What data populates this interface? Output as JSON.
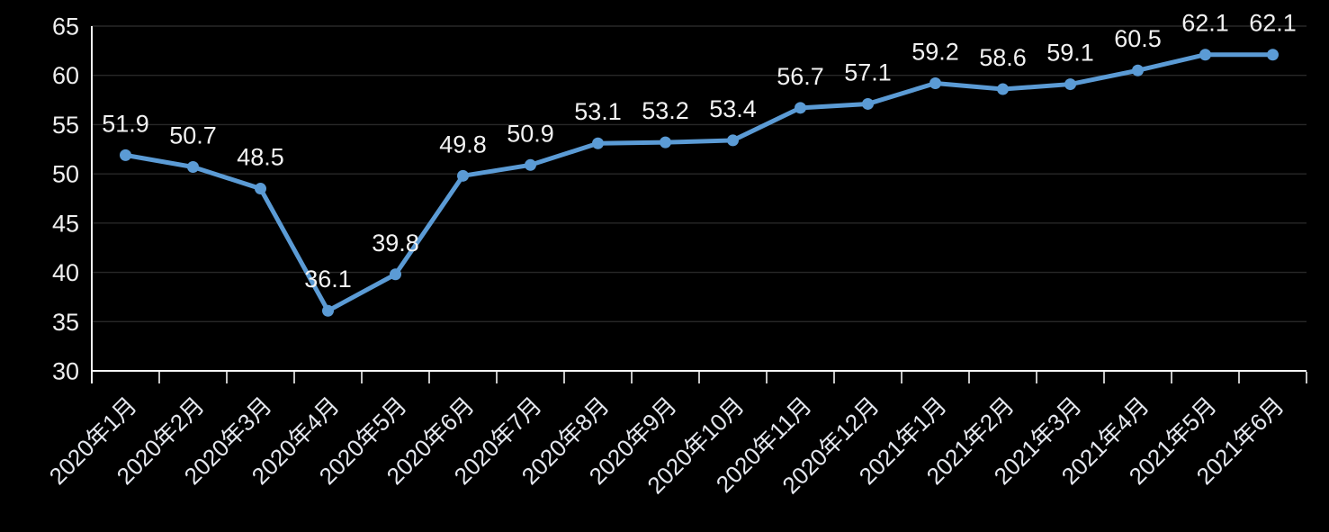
{
  "chart_data": {
    "type": "line",
    "title": "",
    "xlabel": "",
    "ylabel": "",
    "categories": [
      "2020年1月",
      "2020年2月",
      "2020年3月",
      "2020年4月",
      "2020年5月",
      "2020年6月",
      "2020年7月",
      "2020年8月",
      "2020年9月",
      "2020年10月",
      "2020年11月",
      "2020年12月",
      "2021年1月",
      "2021年2月",
      "2021年3月",
      "2021年4月",
      "2021年5月",
      "2021年6月"
    ],
    "values": [
      51.9,
      50.7,
      48.5,
      36.1,
      39.8,
      49.8,
      50.9,
      53.1,
      53.2,
      53.4,
      56.7,
      57.1,
      59.2,
      58.6,
      59.1,
      60.5,
      62.1,
      62.1
    ],
    "ylim": [
      30,
      65
    ],
    "yticks": [
      30,
      35,
      40,
      45,
      50,
      55,
      60,
      65
    ],
    "grid": true,
    "legend_position": "none",
    "data_labels": true,
    "x_label_rotation_deg": -45,
    "colors": {
      "background": "#000000",
      "line": "#5B9BD5",
      "marker": "#5B9BD5",
      "gridline": "#282828",
      "axis": "#F5F5F5",
      "data_label_text": "#F2F2F2",
      "y_tick_text": "#EFEFEF",
      "x_tick_text": "#E4E7EE"
    }
  }
}
